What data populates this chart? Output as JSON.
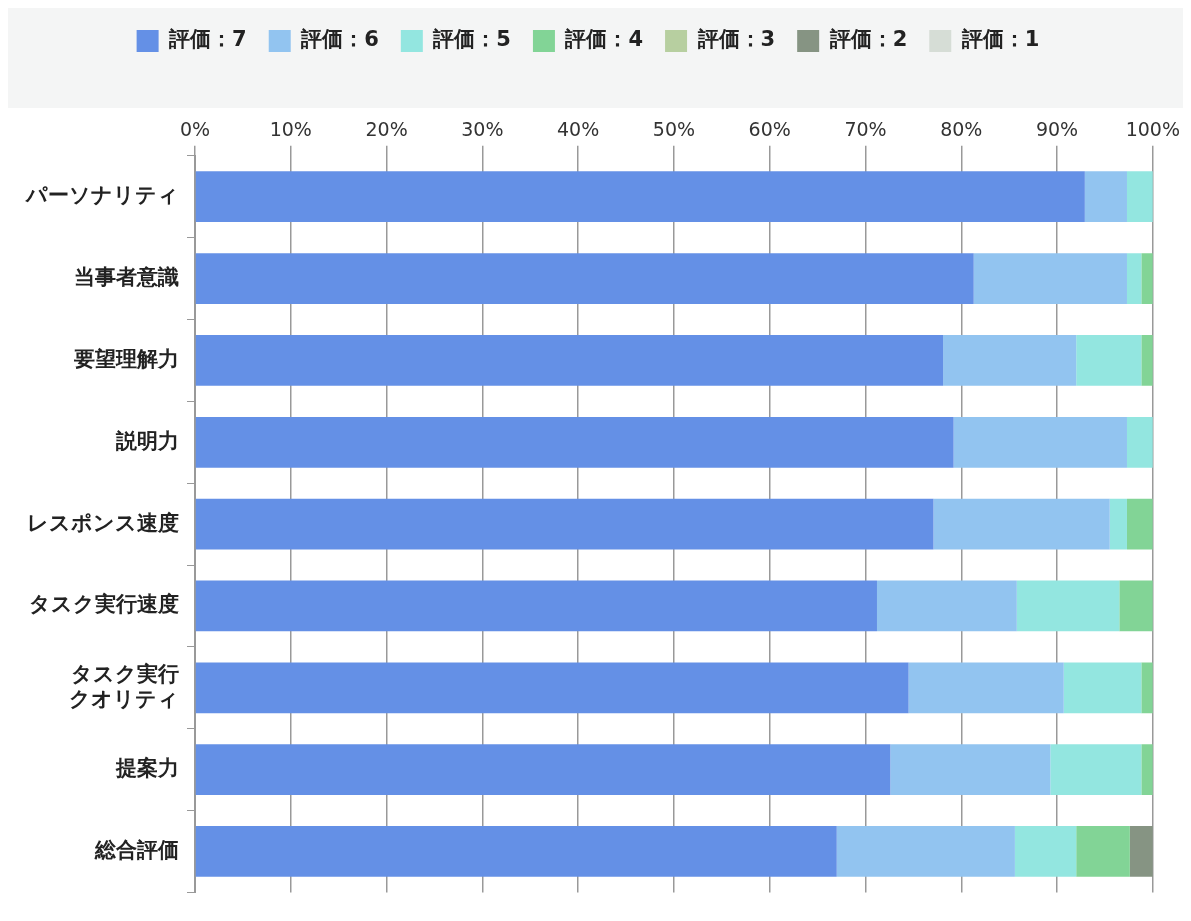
{
  "chart_data": {
    "type": "bar",
    "orientation": "horizontal",
    "stacked": true,
    "categories": [
      "パーソナリティ",
      "当事者意識",
      "要望理解力",
      "説明力",
      "レスポンス速度",
      "タスク実行速度",
      "タスク実行クオリティ",
      "提案力",
      "総合評価"
    ],
    "series": [
      {
        "name": "評価：7",
        "color": "#6490e6",
        "values": [
          92.9,
          81.3,
          78.1,
          79.2,
          77.1,
          71.2,
          74.5,
          72.6,
          67.0
        ]
      },
      {
        "name": "評価：6",
        "color": "#92c4f0",
        "values": [
          4.4,
          16.0,
          13.9,
          18.1,
          18.4,
          14.6,
          16.2,
          16.7,
          18.6
        ]
      },
      {
        "name": "評価：5",
        "color": "#93e6e0",
        "values": [
          2.7,
          1.5,
          6.8,
          2.7,
          1.8,
          10.7,
          8.1,
          9.5,
          6.4
        ]
      },
      {
        "name": "評価：4",
        "color": "#82d496",
        "values": [
          0,
          1.2,
          1.2,
          0,
          2.7,
          3.5,
          1.2,
          1.2,
          5.6
        ]
      },
      {
        "name": "評価：3",
        "color": "#b7cfa0",
        "values": [
          0,
          0,
          0,
          0,
          0,
          0,
          0,
          0,
          0
        ]
      },
      {
        "name": "評価：2",
        "color": "#869483",
        "values": [
          0,
          0,
          0,
          0,
          0,
          0,
          0,
          0,
          2.4
        ]
      },
      {
        "name": "評価：1",
        "color": "#d6ddd6",
        "values": [
          0,
          0,
          0,
          0,
          0,
          0,
          0,
          0,
          0
        ]
      }
    ],
    "xlim": [
      0,
      100
    ],
    "xticks": [
      {
        "value": 0,
        "label": "0%"
      },
      {
        "value": 10,
        "label": "10%"
      },
      {
        "value": 20,
        "label": "20%"
      },
      {
        "value": 30,
        "label": "30%"
      },
      {
        "value": 40,
        "label": "40%"
      },
      {
        "value": 50,
        "label": "50%"
      },
      {
        "value": 60,
        "label": "60%"
      },
      {
        "value": 70,
        "label": "70%"
      },
      {
        "value": 80,
        "label": "80%"
      },
      {
        "value": 90,
        "label": "90%"
      },
      {
        "value": 100,
        "label": "100%"
      }
    ],
    "grid": "x",
    "legend": "top"
  }
}
